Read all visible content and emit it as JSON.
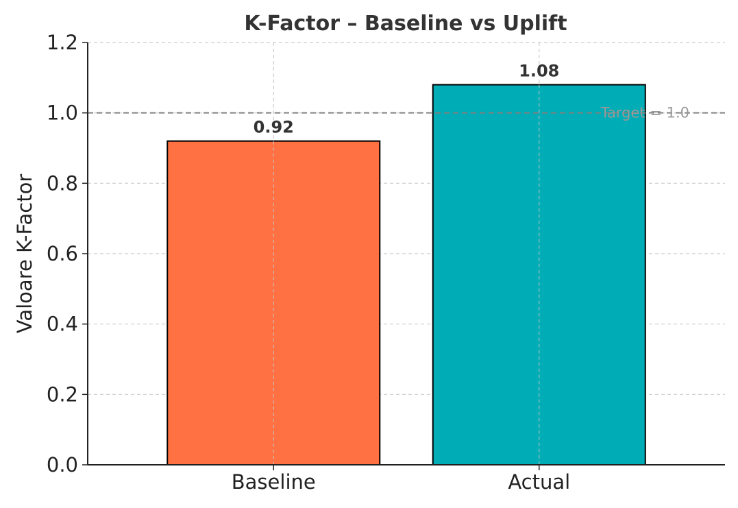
{
  "chart_data": {
    "type": "bar",
    "title": "K-Factor – Baseline vs Uplift",
    "xlabel": "",
    "ylabel": "Valoare K-Factor",
    "categories": [
      "Baseline",
      "Actual"
    ],
    "values": [
      0.92,
      1.08
    ],
    "value_labels": [
      "0.92",
      "1.08"
    ],
    "colors": [
      "#FF7043",
      "#00ACB5"
    ],
    "edge_color": "#000000",
    "ylim": [
      0,
      1.2
    ],
    "yticks": [
      "0.0",
      "0.2",
      "0.4",
      "0.6",
      "0.8",
      "1.0",
      "1.2"
    ],
    "grid": true,
    "reference_line": {
      "value": 1.0,
      "label": "Target = 1.0",
      "color": "#808080"
    }
  }
}
